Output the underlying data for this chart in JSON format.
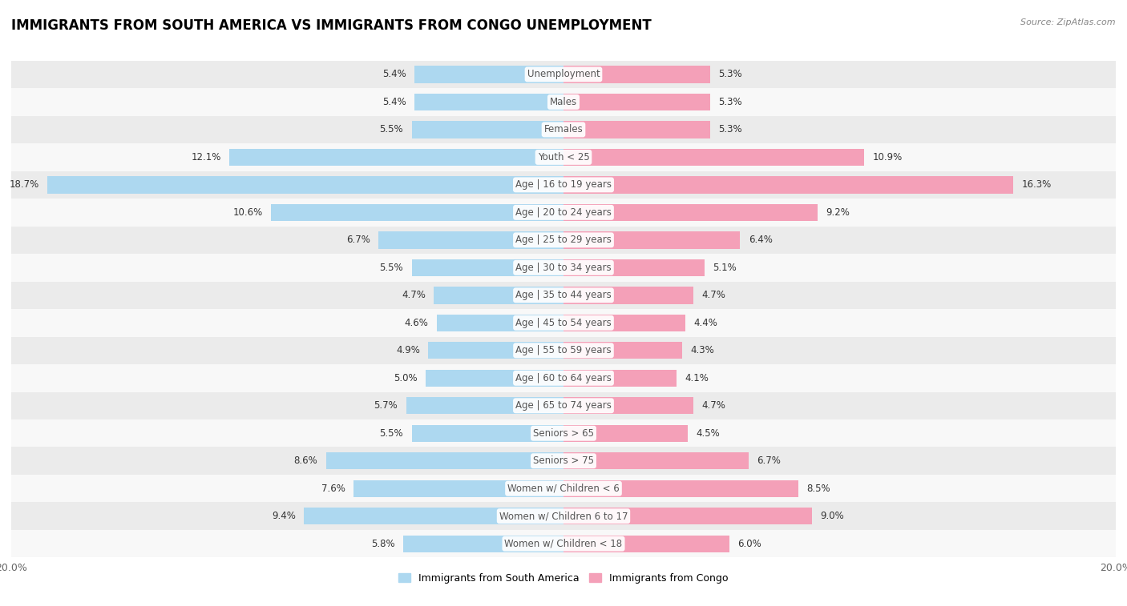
{
  "title": "IMMIGRANTS FROM SOUTH AMERICA VS IMMIGRANTS FROM CONGO UNEMPLOYMENT",
  "source": "Source: ZipAtlas.com",
  "categories": [
    "Unemployment",
    "Males",
    "Females",
    "Youth < 25",
    "Age | 16 to 19 years",
    "Age | 20 to 24 years",
    "Age | 25 to 29 years",
    "Age | 30 to 34 years",
    "Age | 35 to 44 years",
    "Age | 45 to 54 years",
    "Age | 55 to 59 years",
    "Age | 60 to 64 years",
    "Age | 65 to 74 years",
    "Seniors > 65",
    "Seniors > 75",
    "Women w/ Children < 6",
    "Women w/ Children 6 to 17",
    "Women w/ Children < 18"
  ],
  "south_america": [
    5.4,
    5.4,
    5.5,
    12.1,
    18.7,
    10.6,
    6.7,
    5.5,
    4.7,
    4.6,
    4.9,
    5.0,
    5.7,
    5.5,
    8.6,
    7.6,
    9.4,
    5.8
  ],
  "congo": [
    5.3,
    5.3,
    5.3,
    10.9,
    16.3,
    9.2,
    6.4,
    5.1,
    4.7,
    4.4,
    4.3,
    4.1,
    4.7,
    4.5,
    6.7,
    8.5,
    9.0,
    6.0
  ],
  "color_south_america": "#add8f0",
  "color_congo": "#f4a0b8",
  "background_row_light": "#ebebeb",
  "background_row_dark": "#f8f8f8",
  "max_val": 20.0,
  "legend_sa": "Immigrants from South America",
  "legend_congo": "Immigrants from Congo",
  "label_color": "#555555",
  "value_color": "#333333"
}
